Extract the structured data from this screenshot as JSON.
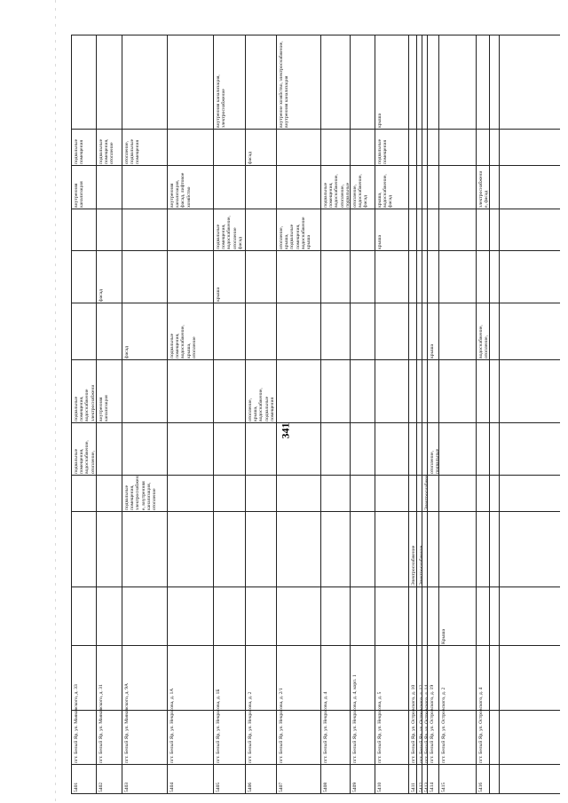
{
  "page_number": "341",
  "rows": [
    {
      "num": "5401",
      "address": "пгт. Белый Яр, ул. Маяковского, д. 33",
      "cells": {
        "c7": "подвальные\nпомещения,\nводоснабжение,\nотопление,\nподвальные\nпомещения,\nводоотведение",
        "c8": "подвальные\nпомещения,\nводоснабжение\nэлектроснабжени\nе",
        "c13": "внутренняя\nканализация",
        "c14": "подвальные\nпомещения"
      }
    },
    {
      "num": "5402",
      "address": "пгт. Белый Яр, ул. Маяковского, д. 31",
      "cells": {
        "c8": "внутренняя\nканализация",
        "c10": "фасад",
        "c14": "подвальные\nпомещения,\nотопление"
      }
    },
    {
      "num": "5403",
      "address": "пгт. Белый Яр, ул. Маяковского, д. 9А",
      "cells": {
        "c6": "подвальные\nпомещения,\nэлектроснабжени\nе, внутренняя\nканализация,\nотопление",
        "c9": "фасад",
        "c14": "отопление,\nподвальные\nпомещения"
      }
    },
    {
      "num": "5404",
      "address": "пгт. Белый Яр, ул. Некрасова, д. 1А",
      "cells": {
        "c9": "подвальные\nпомещения,\nводоснабжение,\nкрыша,\nотопление",
        "c13": "внутренняя\nканализация,\nфасад, лифтовое\nхозяйство"
      }
    },
    {
      "num": "5405",
      "address": "пгт. Белый Яр, ул. Некрасова, д. 1Б",
      "cells": {
        "c10": "крыша",
        "c11": "подвальные\nпомещения,\nводоснабжение,\nотопление\nфасад",
        "c15": "внутренняя канализация,\nэлектроснабжение"
      }
    },
    {
      "num": "5406",
      "address": "пгт. Белый Яр, ул. Некрасова, д. 2",
      "cells": {
        "c8": "отопление,\nкрыша,\nводоснабжение,\nподвальные\nпомещения",
        "c14": "фасад"
      }
    },
    {
      "num": "5407",
      "address": "пгт. Белый Яр, ул. Некрасова, д. 2/1",
      "cells": {
        "c11": "отопление,\nкрыша,\nподвальные\nпомещения,\nводоснабжение\nкрыша",
        "c15": "внутренне хозяйство, электроснабжение,\nвнутренняя канализация"
      }
    },
    {
      "num": "5408",
      "address": "пгт. Белый Яр, ул. Некрасова, д. 4",
      "cells": {
        "c13": "подвальные\nпомещения,\nводоснабжение,\nотопление,\nподвальные\nпомещения,\nкрыша,\nводоснабжение"
      }
    },
    {
      "num": "5409",
      "address": "пгт. Белый Яр, ул. Некрасова, д. 4, корп. 1",
      "cells": {
        "c13": "отопление,\nводоснабжение,\nфасад"
      }
    },
    {
      "num": "5410",
      "address": "пгт. Белый Яр, ул. Некрасова, д. 5",
      "cells": {
        "c11": "крыша",
        "c13": "крыша,\nводоснабжение,\nфасад",
        "c14": "подвальные\nпомещения",
        "c15": "крыша"
      }
    },
    {
      "num": "5411",
      "address": "пгт. Белый Яр, ул. Островского, д. 10",
      "cells": {
        "c5": "Электроснабжение\nФасад, Крыша"
      }
    },
    {
      "num": "5412",
      "address": "пгт. Белый Яр, ул. Островского, д. 12",
      "cells": {
        "c5": "Электроснабжение\nКрыша"
      }
    },
    {
      "num": "5413",
      "address": "пгт. Белый Яр, ул. Островского, д. 14",
      "cells": {
        "c6": "Электроснабжение\nфасад,\nводоснабжение,\nкрыша"
      }
    },
    {
      "num": "5414",
      "address": "пгт. Белый Яр, ул. Островского, д. 19",
      "cells": {
        "c7": "отопление,\nподвальные\nпомещения,\nводоснабжение",
        "c9": "крыша"
      }
    },
    {
      "num": "5415",
      "address": "пгт. Белый Яр, ул. Островского, д. 2",
      "cells": {
        "c4": "Крыша"
      }
    },
    {
      "num": "5416",
      "address": "пгт. Белый Яр, ул. Островского, д. 4",
      "cells": {
        "c9": "водоснабжение,\nотопление,\nподвальные\nпомещения",
        "c13": "электроснабжени\nе, фасад"
      }
    }
  ]
}
